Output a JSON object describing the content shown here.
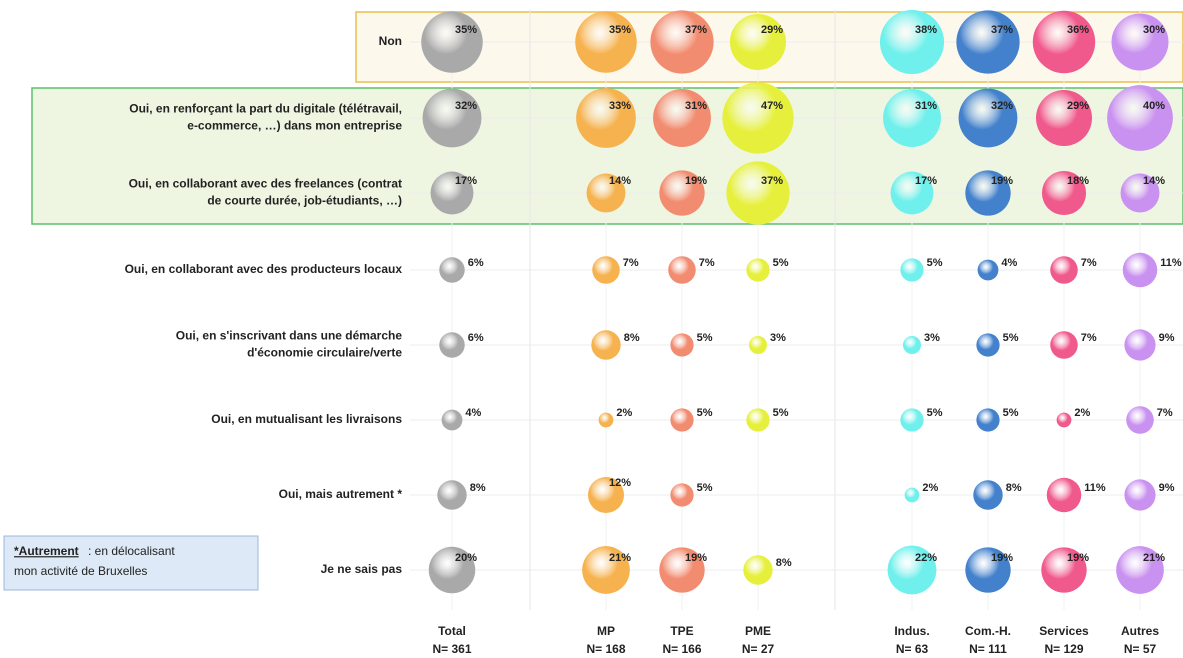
{
  "chart_data": {
    "type": "bubble-matrix",
    "categories": [
      [
        "Non"
      ],
      [
        "Oui, en renforçant la part du digitale (télétravail,",
        "e-commerce, …) dans mon entreprise"
      ],
      [
        "Oui, en collaborant avec des freelances (contrat",
        "de courte durée, job-étudiants, …)"
      ],
      [
        "Oui, en collaborant avec des producteurs locaux"
      ],
      [
        "Oui, en s'inscrivant dans une démarche",
        "d'économie circulaire/verte"
      ],
      [
        "Oui, en mutualisant les livraisons"
      ],
      [
        "Oui, mais autrement *"
      ],
      [
        "Je ne sais pas"
      ]
    ],
    "series": [
      {
        "name": "Total",
        "n_label": "N= 361",
        "color": "#a9a9a9",
        "values": [
          35,
          32,
          17,
          6,
          6,
          4,
          8,
          20
        ],
        "value_labels": [
          "35%",
          "32%",
          "17%",
          "6%",
          "6%",
          "4%",
          "8%",
          "20%"
        ]
      },
      {
        "name": "MP",
        "n_label": "N= 168",
        "color": "#f6b24e",
        "values": [
          35,
          33,
          14,
          7,
          8,
          2,
          12,
          21
        ],
        "value_labels": [
          "35%",
          "33%",
          "14%",
          "7%",
          "8%",
          "2%",
          "12%",
          "21%"
        ]
      },
      {
        "name": "TPE",
        "n_label": "N= 166",
        "color": "#f28c70",
        "values": [
          37,
          31,
          19,
          7,
          5,
          5,
          5,
          19
        ],
        "value_labels": [
          "37%",
          "31%",
          "19%",
          "7%",
          "5%",
          "5%",
          "5%",
          "19%"
        ]
      },
      {
        "name": "PME",
        "n_label": "N= 27",
        "color": "#e6f03c",
        "values": [
          29,
          47,
          37,
          5,
          3,
          5,
          null,
          8
        ],
        "value_labels": [
          "29%",
          "47%",
          "37%",
          "5%",
          "3%",
          "5%",
          null,
          "8%"
        ]
      },
      {
        "name": "Indus.",
        "n_label": "N= 63",
        "color": "#6ff0ec",
        "values": [
          38,
          31,
          17,
          5,
          3,
          5,
          2,
          22
        ],
        "value_labels": [
          "38%",
          "31%",
          "17%",
          "5%",
          "3%",
          "5%",
          "2%",
          "22%"
        ]
      },
      {
        "name": "Com.-H.",
        "n_label": "N= 111",
        "color": "#4381cc",
        "values": [
          37,
          32,
          19,
          4,
          5,
          5,
          8,
          19
        ],
        "value_labels": [
          "37%",
          "32%",
          "19%",
          "4%",
          "5%",
          "5%",
          "8%",
          "19%"
        ]
      },
      {
        "name": "Services",
        "n_label": "N= 129",
        "color": "#f0598c",
        "values": [
          36,
          29,
          18,
          7,
          7,
          2,
          11,
          19
        ],
        "value_labels": [
          "36%",
          "29%",
          "18%",
          "7%",
          "7%",
          "2%",
          "11%",
          "19%"
        ]
      },
      {
        "name": "Autres",
        "n_label": "N= 57",
        "color": "#c991f0",
        "values": [
          30,
          40,
          14,
          11,
          9,
          7,
          9,
          21
        ],
        "value_labels": [
          "30%",
          "40%",
          "14%",
          "11%",
          "9%",
          "7%",
          "9%",
          "21%"
        ]
      }
    ],
    "annotation": {
      "term": "*Autrement",
      "lines": [
        ": en délocalisant",
        "mon activité de Bruxelles"
      ]
    }
  }
}
